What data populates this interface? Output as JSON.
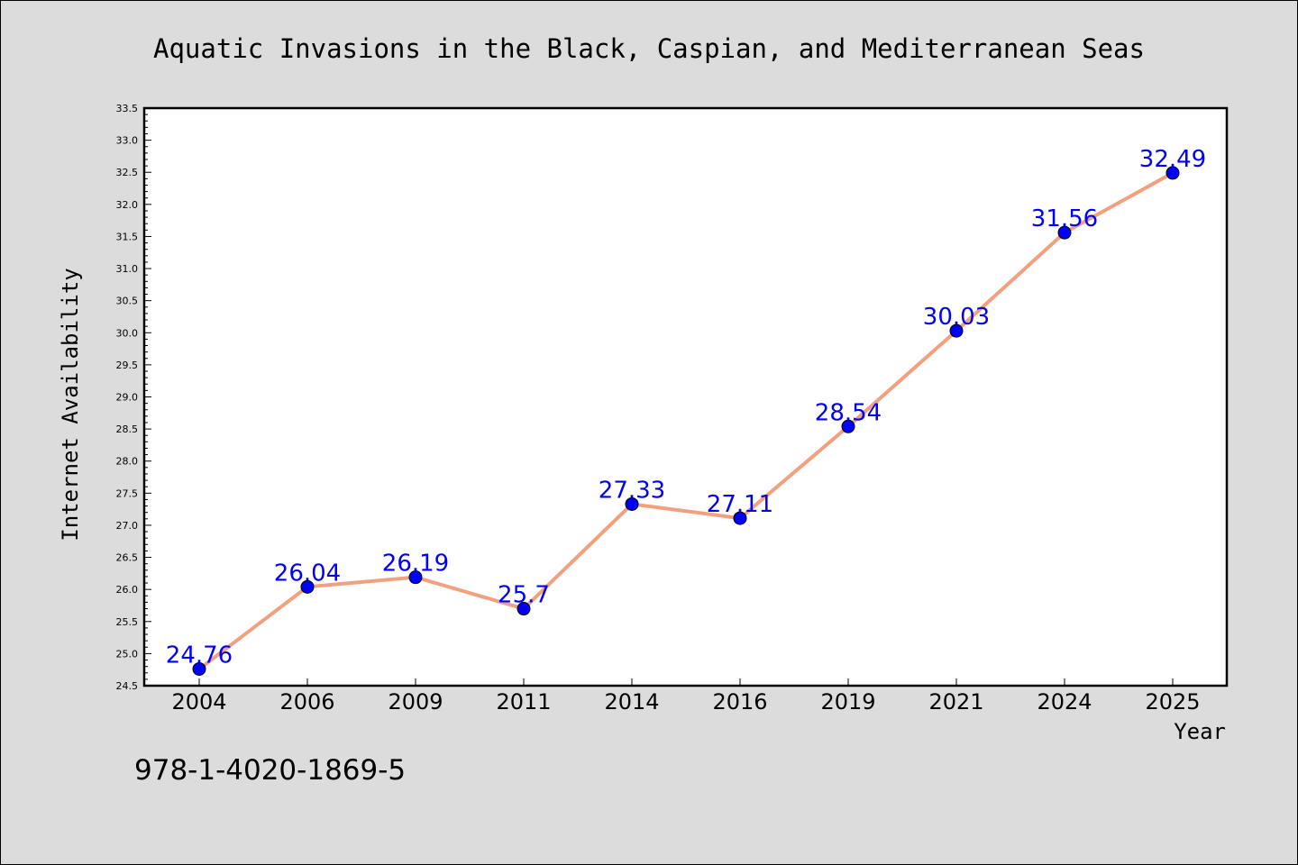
{
  "chart_data": {
    "type": "line",
    "title": "Aquatic Invasions in the Black, Caspian, and Mediterranean Seas",
    "xlabel": "Year",
    "ylabel": "Internet Availability",
    "categories": [
      "2004",
      "2006",
      "2009",
      "2011",
      "2014",
      "2016",
      "2019",
      "2021",
      "2024",
      "2025"
    ],
    "values": [
      24.76,
      26.04,
      26.19,
      25.7,
      27.33,
      27.11,
      28.54,
      30.03,
      31.56,
      32.49
    ],
    "data_labels": [
      "24.76",
      "26.04",
      "26.19",
      "25.7",
      "27.33",
      "27.11",
      "28.54",
      "30.03",
      "31.56",
      "32.49"
    ],
    "ylim": [
      24.5,
      33.5
    ],
    "yticks": [
      "24.5",
      "25.0",
      "25.5",
      "26.0",
      "26.5",
      "27.0",
      "27.5",
      "28.0",
      "28.5",
      "29.0",
      "29.5",
      "30.0",
      "30.5",
      "31.0",
      "31.5",
      "32.0",
      "32.5",
      "33.0",
      "33.5"
    ],
    "grid": false,
    "line_color": "#f4a07e",
    "marker_color": "#0000ff",
    "label_color": "#0000ff",
    "background_color": "#dcdcdc",
    "plot_background_color": "#ffffff"
  },
  "footer_note": "978-1-4020-1869-5"
}
